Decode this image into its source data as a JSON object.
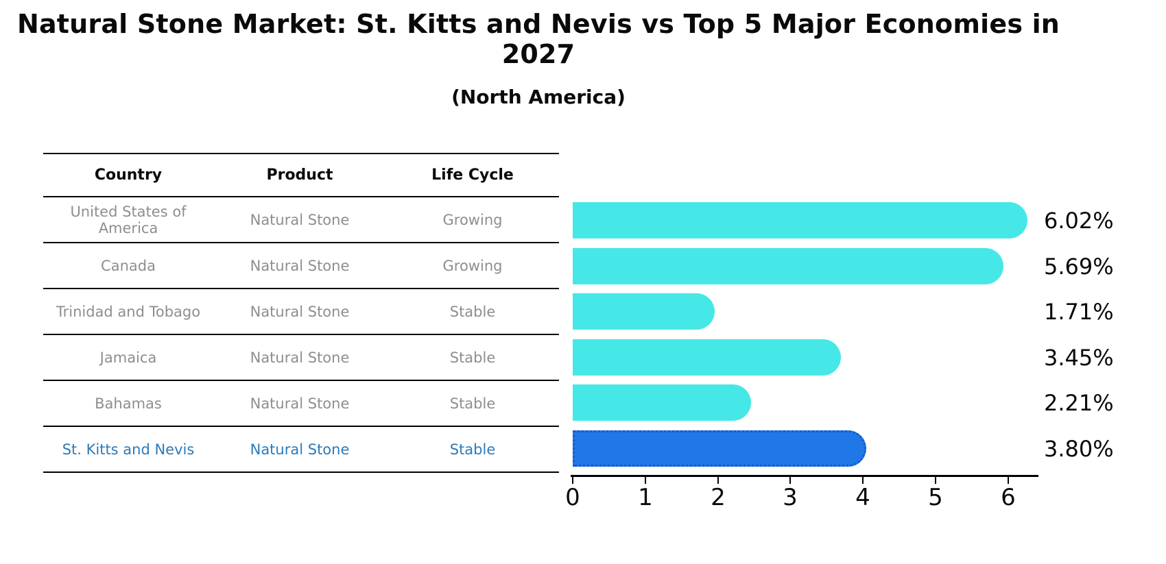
{
  "title": "Natural Stone Market: St. Kitts and Nevis vs Top 5 Major Economies in 2027",
  "subtitle": "(North America)",
  "table": {
    "headers": [
      "Country",
      "Product",
      "Life Cycle"
    ],
    "rows": [
      {
        "country": "United States of America",
        "product": "Natural Stone",
        "life_cycle": "Growing",
        "highlighted": false
      },
      {
        "country": "Canada",
        "product": "Natural Stone",
        "life_cycle": "Growing",
        "highlighted": false
      },
      {
        "country": "Trinidad and Tobago",
        "product": "Natural Stone",
        "life_cycle": "Stable",
        "highlighted": false
      },
      {
        "country": "Jamaica",
        "product": "Natural Stone",
        "life_cycle": "Stable",
        "highlighted": false
      },
      {
        "country": "Bahamas",
        "product": "Natural Stone",
        "life_cycle": "Stable",
        "highlighted": false
      },
      {
        "country": "St. Kitts and Nevis",
        "product": "Natural Stone",
        "life_cycle": "Stable",
        "highlighted": true
      }
    ]
  },
  "chart_data": {
    "type": "bar",
    "orientation": "horizontal",
    "title": "Natural Stone Market: St. Kitts and Nevis vs Top 5 Major Economies in 2027 (North America)",
    "categories": [
      "United States of America",
      "Canada",
      "Trinidad and Tobago",
      "Jamaica",
      "Bahamas",
      "St. Kitts and Nevis"
    ],
    "values": [
      6.02,
      5.69,
      1.71,
      3.45,
      2.21,
      3.8
    ],
    "value_labels": [
      "6.02%",
      "5.69%",
      "1.71%",
      "3.45%",
      "2.21%",
      "3.80%"
    ],
    "unit": "%",
    "xlim": [
      0,
      6.4
    ],
    "x_ticks": [
      "0",
      "1",
      "2",
      "3",
      "4",
      "5",
      "6"
    ],
    "grid": false,
    "legend": false,
    "highlight_index": 5
  },
  "colors": {
    "bar_default": "#45e8e6",
    "bar_highlight": "#2077e8",
    "bar_highlight_border": "#1659cf",
    "highlight_text": "#2b7bba",
    "muted_text": "#8e8e8e",
    "axis": "#000000"
  }
}
